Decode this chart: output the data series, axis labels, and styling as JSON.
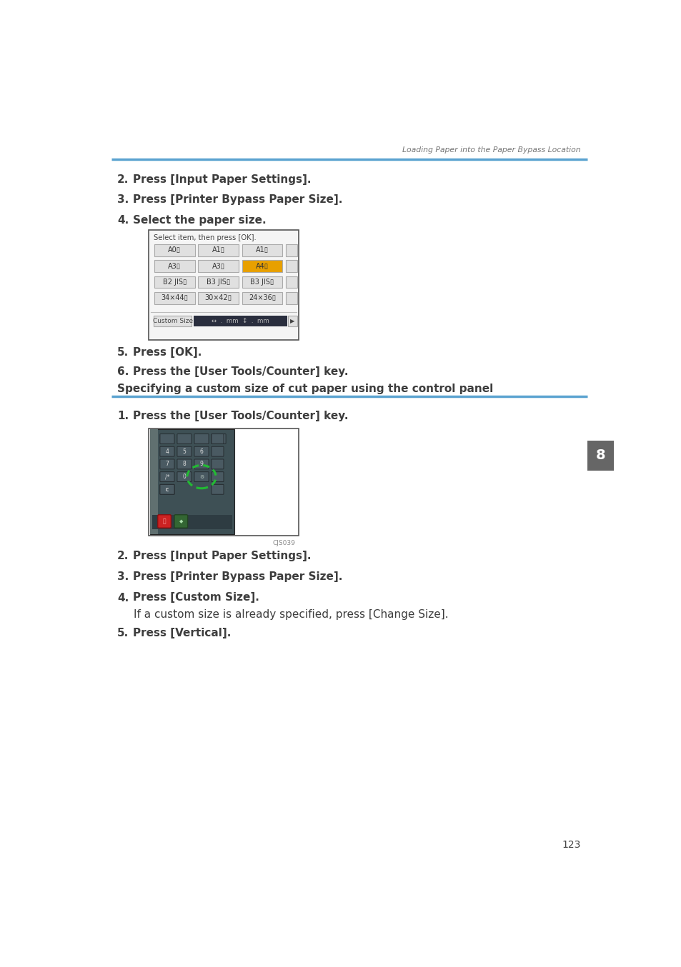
{
  "bg_color": "#ffffff",
  "header_text": "Loading Paper into the Paper Bypass Location",
  "header_line_color": "#5ba3d0",
  "page_number": "123",
  "tab_number": "8",
  "tab_bg": "#666666",
  "tab_text_color": "#ffffff",
  "body_text_color": "#3d3d3d",
  "section_heading": "Specifying a custom size of cut paper using the control panel",
  "section_heading_line_color": "#5ba3d0",
  "steps_top": [
    {
      "num": "2.",
      "text": "Press [Input Paper Settings]."
    },
    {
      "num": "3.",
      "text": "Press [Printer Bypass Paper Size]."
    },
    {
      "num": "4.",
      "text": "Select the paper size."
    }
  ],
  "steps_56": [
    {
      "num": "5.",
      "text": "Press [OK]."
    },
    {
      "num": "6.",
      "text": "Press the [User Tools/Counter] key."
    }
  ],
  "step1_text": "Press the [User Tools/Counter] key.",
  "steps_bottom": [
    {
      "num": "2.",
      "text": "Press [Input Paper Settings].",
      "bold": true
    },
    {
      "num": "3.",
      "text": "Press [Printer Bypass Paper Size].",
      "bold": true
    },
    {
      "num": "4.",
      "text": "Press [Custom Size].",
      "bold": true
    },
    {
      "num": "",
      "text": "If a custom size is already specified, press [Change Size].",
      "bold": false
    },
    {
      "num": "5.",
      "text": "Press [Vertical].",
      "bold": true
    }
  ],
  "ui_box_text": "Select item, then press [OK].",
  "ui_buttons_row1": [
    "A0▯",
    "A1▯",
    "A1▯"
  ],
  "ui_buttons_row2": [
    "A3▯",
    "A3▯",
    "A4▯"
  ],
  "ui_buttons_row3": [
    "B2 JIS▯",
    "B3 JIS▯",
    "B3 JIS▯"
  ],
  "ui_buttons_row4": [
    "34×44▯",
    "30×42▯",
    "24×36▯"
  ],
  "highlighted_button_idx": [
    1,
    2
  ],
  "highlight_color": "#e8a000",
  "ui_btn_bg": "#e0e0e0",
  "ui_btn_border": "#aaaaaa",
  "ui_dark_bar_bg": "#2a2e3e",
  "custom_size_btn": "Custom Size",
  "img_caption": "CJS039",
  "panel_bg_dark": "#3a4a50",
  "panel_bg_mid": "#4a5a60",
  "panel_key_bg": "#4a5560",
  "panel_key_border": "#2a3038",
  "green_circle_color": "#22bb33"
}
